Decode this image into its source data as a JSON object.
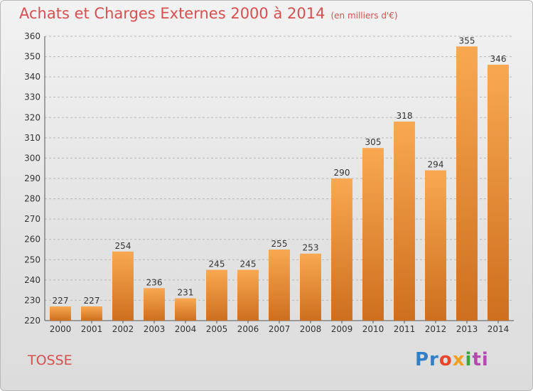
{
  "header": {
    "title": "Achats et Charges Externes 2000 à 2014",
    "unit": "(en milliers d'€)"
  },
  "commune": "TOSSE",
  "logo": {
    "text": "Proxiti",
    "letters": [
      "Pr",
      "o",
      "x",
      "i",
      "ti"
    ]
  },
  "colors": {
    "bar_light": "#f9a852",
    "bar_dark": "#cd6f1e",
    "title": "#d84f4f",
    "grid": "#b8b8b8"
  },
  "chart_data": {
    "type": "bar",
    "title": "Achats et Charges Externes 2000 à 2014",
    "subtitle": "(en milliers d'€)",
    "categories": [
      "2000",
      "2001",
      "2002",
      "2003",
      "2004",
      "2005",
      "2006",
      "2007",
      "2008",
      "2009",
      "2010",
      "2011",
      "2012",
      "2013",
      "2014"
    ],
    "values": [
      227,
      227,
      254,
      236,
      231,
      245,
      245,
      255,
      253,
      290,
      305,
      318,
      294,
      355,
      346
    ],
    "data_labels": [
      "227",
      "227",
      "254",
      "236",
      "231",
      "245",
      "245",
      "255",
      "253",
      "290",
      "305",
      "318",
      "294",
      "355",
      "346"
    ],
    "ylim": [
      220,
      360
    ],
    "yticks": [
      220,
      230,
      240,
      250,
      260,
      270,
      280,
      290,
      300,
      310,
      320,
      330,
      340,
      350,
      360
    ],
    "grid": true,
    "legend": "none"
  }
}
